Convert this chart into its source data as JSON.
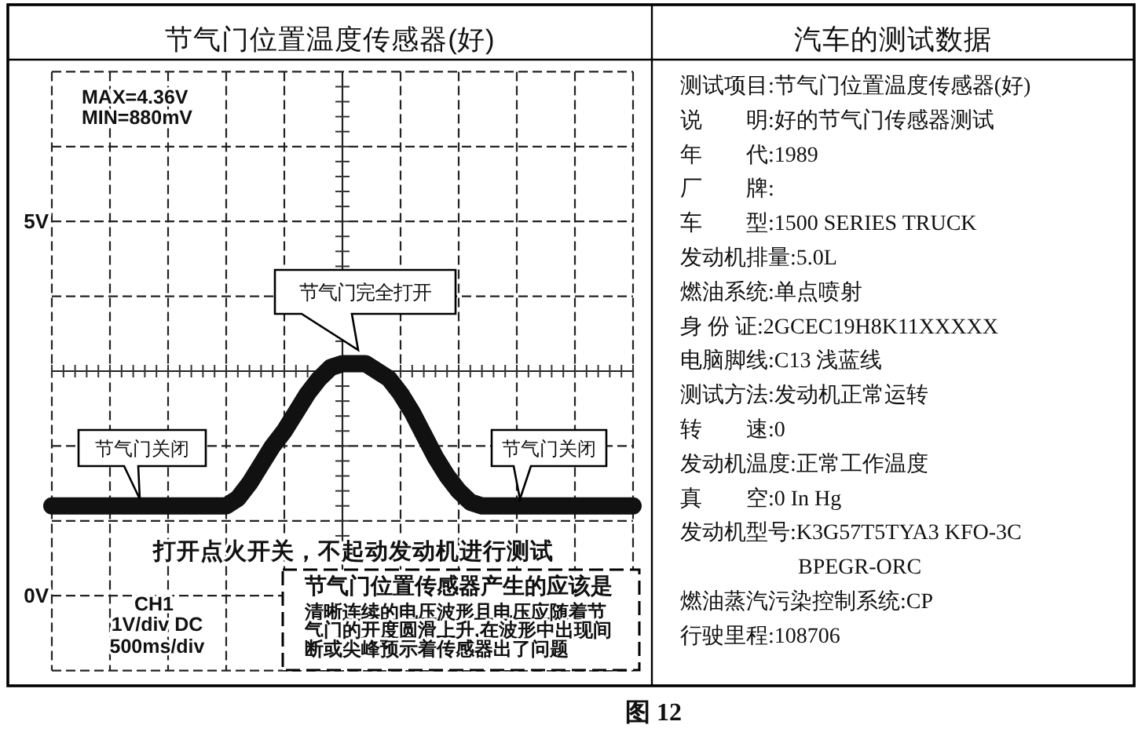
{
  "chart_data": [
    {
      "type": "line",
      "title": "节气门位置温度传感器(好)",
      "categories": [
        null,
        null,
        null,
        null,
        null,
        null,
        null,
        null,
        null,
        null,
        null,
        null,
        null,
        null,
        null,
        null,
        null,
        null,
        null,
        null,
        null,
        null,
        null,
        null,
        null,
        null,
        null,
        null,
        null,
        null,
        null,
        null,
        null,
        null,
        null,
        null,
        null,
        null,
        null,
        null,
        null,
        null,
        null,
        null,
        null,
        null,
        null,
        null,
        null,
        null,
        null
      ],
      "values": [
        1.2,
        1.2,
        1.2,
        1.2,
        1.2,
        1.2,
        1.2,
        1.2,
        1.2,
        1.2,
        1.2,
        1.2,
        1.2,
        1.2,
        1.2,
        1.2,
        1.3,
        1.5,
        1.75,
        2.0,
        2.2,
        2.45,
        2.7,
        2.9,
        3.05,
        3.1,
        3.1,
        3.1,
        3.0,
        2.9,
        2.7,
        2.45,
        2.15,
        1.85,
        1.6,
        1.4,
        1.25,
        1.2,
        1.2,
        1.2,
        1.2,
        1.2,
        1.2,
        1.2,
        1.2,
        1.2,
        1.2,
        1.2,
        1.2,
        1.2,
        1.2
      ],
      "color": "#111111",
      "ylim": [
        -1,
        7
      ],
      "yticks": [
        {
          "value": -1,
          "label": null
        },
        {
          "value": 0,
          "label": "0V"
        },
        {
          "value": 1,
          "label": null
        },
        {
          "value": 2,
          "label": null
        },
        {
          "value": 3,
          "label": null
        },
        {
          "value": 4,
          "label": null
        },
        {
          "value": 5,
          "label": "5V"
        },
        {
          "value": 6,
          "label": null
        },
        {
          "value": 7,
          "label": null
        }
      ],
      "grid": true,
      "tick_labels": "y",
      "annotations": [
        "MAX=4.36V",
        "MIN=880mV",
        "节气门完全打开",
        "节气门关闭",
        "节气门关闭",
        "打开点火开关，不起动发动机进行测试",
        "节气门位置传感器产生的应该是",
        "清晰连续的电压波形且电压应随着节气门的开度圆滑上升,在波形中出现间断或尖峰预示着传感器出了问题",
        "CH1",
        "1V/div DC",
        "500ms/div",
        "图 12"
      ]
    },
    {
      "type": "other",
      "title": "汽车的测试数据",
      "annotations": [
        "测试项目:节气门位置温度传感器(好)",
        "说　　明:好的节气门传感器测试",
        "年　　代:1989",
        "厂　　牌:",
        "车　　型:1500 SERIES TRUCK",
        "发动机排量:5.0L",
        "燃油系统:单点喷射",
        "身 份 证:2GCEC19H8K11XXXXX",
        "电脑脚线:C13 浅蓝线",
        "测试方法:发动机正常运转",
        "转　　速:0",
        "发动机温度:正常工作温度",
        "真　　空:0 In Hg",
        "发动机型号:K3G57T5TYA3 KFO-3C",
        "BPEGR-ORC",
        "燃油蒸汽污染控制系统:CP",
        "行驶里程:108706"
      ]
    }
  ]
}
